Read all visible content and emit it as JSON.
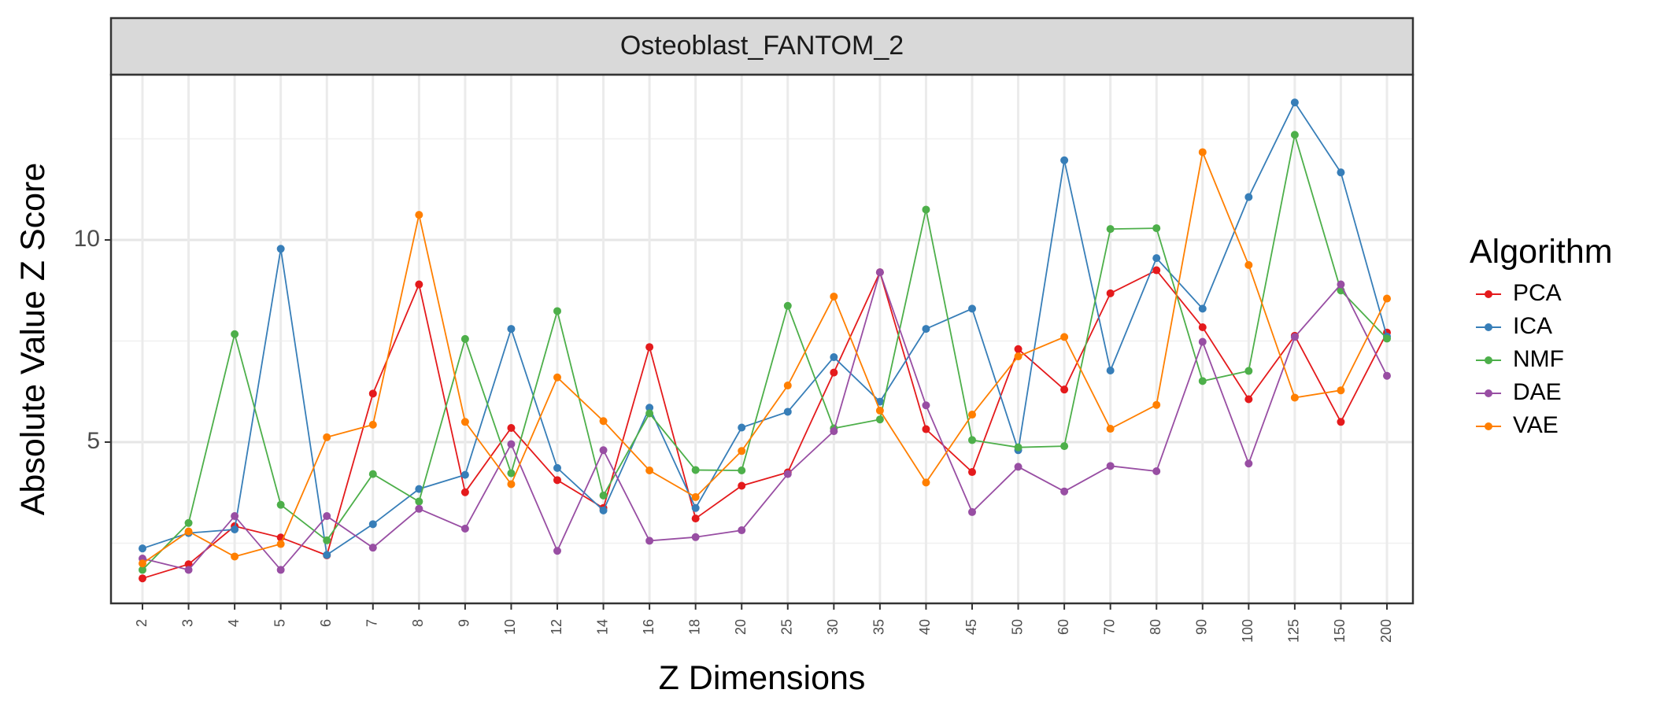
{
  "chart_data": {
    "type": "line",
    "facet_title": "Osteoblast_FANTOM_2",
    "xlabel": "Z Dimensions",
    "ylabel": "Absolute Value Z Score",
    "categories": [
      "2",
      "3",
      "4",
      "5",
      "6",
      "7",
      "8",
      "9",
      "10",
      "12",
      "14",
      "16",
      "18",
      "20",
      "25",
      "30",
      "35",
      "40",
      "45",
      "50",
      "60",
      "70",
      "80",
      "90",
      "100",
      "125",
      "150",
      "200"
    ],
    "yticks": [
      5,
      10
    ],
    "ylim": [
      1.5,
      14.2
    ],
    "grid": true,
    "legend_title": "Algorithm",
    "legend_position": "right",
    "series": [
      {
        "name": "PCA",
        "color": "#E41A1C",
        "values": [
          1.63,
          1.98,
          2.92,
          2.64,
          2.2,
          6.2,
          8.9,
          3.76,
          5.35,
          4.06,
          3.37,
          7.35,
          3.11,
          3.92,
          4.25,
          6.72,
          9.2,
          5.32,
          4.26,
          7.3,
          6.3,
          8.68,
          9.25,
          7.84,
          6.06,
          7.63,
          5.5,
          7.71
        ]
      },
      {
        "name": "ICA",
        "color": "#377EB8",
        "values": [
          2.37,
          2.75,
          2.84,
          9.78,
          2.21,
          2.97,
          3.84,
          4.19,
          7.8,
          4.36,
          3.31,
          5.85,
          3.37,
          5.36,
          5.75,
          7.1,
          6.0,
          7.8,
          8.3,
          4.8,
          11.97,
          6.77,
          9.55,
          8.3,
          11.06,
          13.4,
          11.67,
          7.61
        ]
      },
      {
        "name": "NMF",
        "color": "#4DAF4A",
        "values": [
          1.84,
          3.0,
          7.67,
          3.45,
          2.57,
          4.21,
          3.53,
          7.55,
          4.23,
          8.24,
          3.68,
          5.71,
          4.31,
          4.3,
          8.37,
          5.34,
          5.56,
          10.75,
          5.05,
          4.87,
          4.9,
          10.27,
          10.29,
          6.51,
          6.76,
          12.6,
          8.75,
          7.56
        ]
      },
      {
        "name": "DAE",
        "color": "#984EA3",
        "values": [
          2.12,
          1.84,
          3.17,
          1.84,
          3.17,
          2.39,
          3.35,
          2.86,
          4.95,
          2.31,
          4.8,
          2.56,
          2.65,
          2.82,
          4.21,
          5.27,
          9.2,
          5.91,
          3.27,
          4.39,
          3.78,
          4.41,
          4.28,
          7.48,
          4.47,
          7.6,
          8.9,
          6.64
        ]
      },
      {
        "name": "VAE",
        "color": "#FF7F00",
        "values": [
          2.0,
          2.79,
          2.17,
          2.48,
          5.12,
          5.43,
          10.62,
          5.5,
          3.96,
          6.6,
          5.52,
          4.3,
          3.64,
          4.78,
          6.4,
          8.6,
          5.78,
          4.0,
          5.68,
          7.12,
          7.6,
          5.33,
          5.92,
          12.17,
          9.38,
          6.1,
          6.28,
          8.55
        ]
      }
    ]
  }
}
